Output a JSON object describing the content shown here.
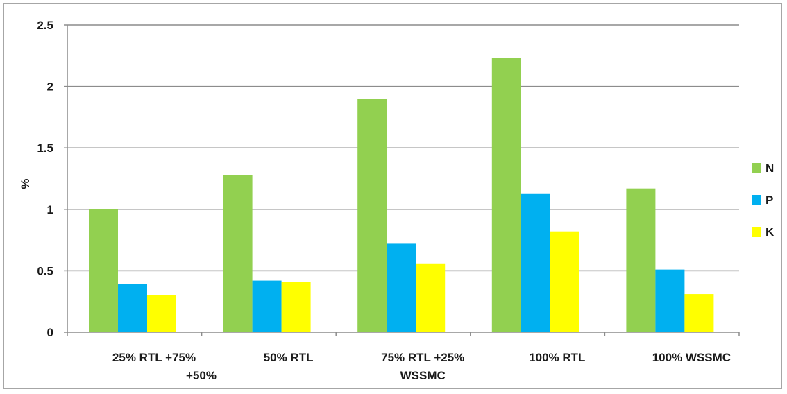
{
  "chart_data": {
    "type": "bar",
    "categories": [
      [
        "25% RTL +75%",
        "+50%"
      ],
      [
        "50% RTL"
      ],
      [
        "75% RTL +25%",
        "WSSMC"
      ],
      [
        "100% RTL"
      ],
      [
        "100% WSSMC"
      ]
    ],
    "series": [
      {
        "name": "N",
        "color": "#92d050",
        "values": [
          1.0,
          1.28,
          1.9,
          2.23,
          1.17
        ]
      },
      {
        "name": "P",
        "color": "#00b0f0",
        "values": [
          0.39,
          0.42,
          0.72,
          1.13,
          0.51
        ]
      },
      {
        "name": "K",
        "color": "#ffff00",
        "values": [
          0.3,
          0.41,
          0.56,
          0.82,
          0.31
        ]
      }
    ],
    "ylabel": "%",
    "ylim": [
      0,
      2.5
    ],
    "yticks": [
      "0",
      "0.5",
      "1",
      "1.5",
      "2",
      "2.5"
    ],
    "ytick_values": [
      0,
      0.5,
      1,
      1.5,
      2,
      2.5
    ],
    "grid": true,
    "legend_position": "right"
  }
}
